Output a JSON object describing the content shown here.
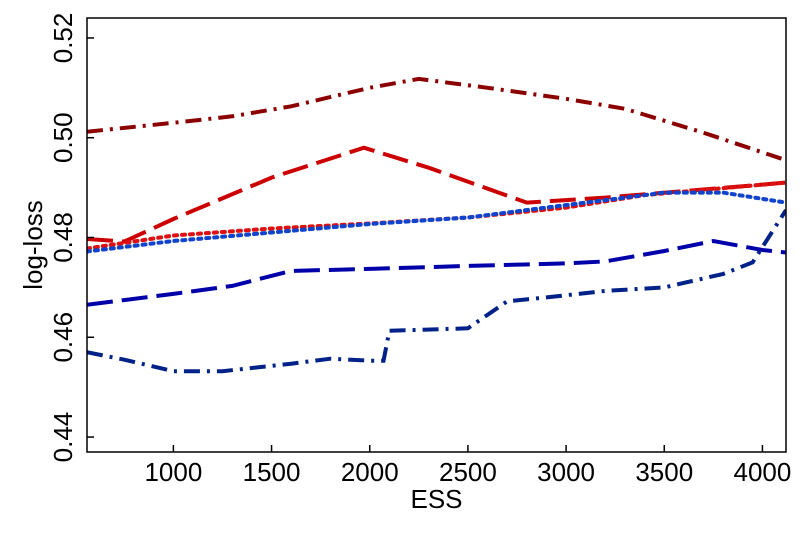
{
  "chart_data": {
    "type": "line",
    "xlabel": "ESS",
    "ylabel": "log-loss",
    "xlim": [
      560,
      4120
    ],
    "ylim": [
      0.437,
      0.524
    ],
    "x_ticks": [
      1000,
      1500,
      2000,
      2500,
      3000,
      3500,
      4000
    ],
    "x_tick_labels": [
      "1000",
      "1500",
      "2000",
      "2500",
      "3000",
      "3500",
      "4000"
    ],
    "y_ticks": [
      0.44,
      0.46,
      0.48,
      0.5,
      0.52
    ],
    "y_tick_labels": [
      "0.44",
      "0.46",
      "0.48",
      "0.50",
      "0.52"
    ],
    "grid": false,
    "series": [
      {
        "color": "#8b0000",
        "style": "dash-dot",
        "x": [
          560,
          1000,
          1300,
          1600,
          2000,
          2250,
          2600,
          3000,
          3300,
          3700,
          4120
        ],
        "y": [
          0.5012,
          0.503,
          0.5043,
          0.5063,
          0.51,
          0.5118,
          0.51,
          0.5078,
          0.5058,
          0.501,
          0.4955
        ]
      },
      {
        "color": "#cc0000",
        "style": "long-dash",
        "x": [
          560,
          750,
          1000,
          1500,
          1970,
          2300,
          2800,
          3200,
          3600,
          4120
        ],
        "y": [
          0.4797,
          0.4792,
          0.4837,
          0.492,
          0.498,
          0.494,
          0.487,
          0.488,
          0.4893,
          0.491
        ]
      },
      {
        "color": "#dd1111",
        "style": "dotted",
        "x": [
          560,
          1000,
          1500,
          2000,
          2500,
          3000,
          3400,
          4120
        ],
        "y": [
          0.4778,
          0.4804,
          0.4818,
          0.4828,
          0.484,
          0.486,
          0.4885,
          0.491
        ]
      },
      {
        "color": "#1144cc",
        "style": "dotted",
        "x": [
          560,
          1000,
          1500,
          2000,
          2500,
          3000,
          3500,
          3800,
          4120
        ],
        "y": [
          0.4772,
          0.4793,
          0.481,
          0.4827,
          0.484,
          0.4865,
          0.489,
          0.489,
          0.487
        ]
      },
      {
        "color": "#0000aa",
        "style": "long-dash",
        "x": [
          560,
          1000,
          1300,
          1600,
          2000,
          2500,
          3000,
          3200,
          3500,
          3750,
          4000,
          4120
        ],
        "y": [
          0.4665,
          0.4687,
          0.4703,
          0.4733,
          0.4737,
          0.4743,
          0.4748,
          0.4752,
          0.4773,
          0.4793,
          0.4775,
          0.477
        ]
      },
      {
        "color": "#002288",
        "style": "dash-dot",
        "x": [
          560,
          750,
          1000,
          1250,
          1600,
          1800,
          2000,
          2070,
          2100,
          2500,
          2700,
          2900,
          3200,
          3500,
          3800,
          3950,
          4120
        ],
        "y": [
          0.457,
          0.4555,
          0.4532,
          0.4532,
          0.4547,
          0.4557,
          0.4553,
          0.4553,
          0.4613,
          0.4618,
          0.4672,
          0.468,
          0.4693,
          0.47,
          0.4727,
          0.475,
          0.4855
        ]
      }
    ]
  }
}
